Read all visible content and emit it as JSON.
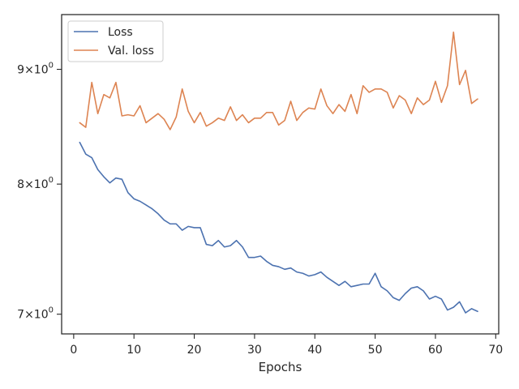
{
  "chart_data": {
    "type": "line",
    "title": "",
    "xlabel": "Epochs",
    "ylabel": "",
    "yscale": "log",
    "xlim": [
      -2,
      70.5
    ],
    "ylim": [
      6.86,
      9.52
    ],
    "x_ticks": [
      0,
      10,
      20,
      30,
      40,
      50,
      60,
      70
    ],
    "y_ticks": [
      {
        "value": 7,
        "base": "7",
        "exp": "0"
      },
      {
        "value": 8,
        "base": "8",
        "exp": "0"
      },
      {
        "value": 9,
        "base": "9",
        "exp": "0"
      }
    ],
    "grid": false,
    "legend": {
      "position": "top-left"
    },
    "x": [
      1,
      2,
      3,
      4,
      5,
      6,
      7,
      8,
      9,
      10,
      11,
      12,
      13,
      14,
      15,
      16,
      17,
      18,
      19,
      20,
      21,
      22,
      23,
      24,
      25,
      26,
      27,
      28,
      29,
      30,
      31,
      32,
      33,
      34,
      35,
      36,
      37,
      38,
      39,
      40,
      41,
      42,
      43,
      44,
      45,
      46,
      47,
      48,
      49,
      50,
      51,
      52,
      53,
      54,
      55,
      56,
      57,
      58,
      59,
      60,
      61,
      62,
      63,
      64,
      65,
      66,
      67
    ],
    "series": [
      {
        "name": "Loss",
        "color": "#4c72b0",
        "values": [
          8.35,
          8.25,
          8.22,
          8.12,
          8.06,
          8.01,
          8.05,
          8.04,
          7.93,
          7.88,
          7.86,
          7.83,
          7.8,
          7.76,
          7.71,
          7.68,
          7.68,
          7.63,
          7.66,
          7.65,
          7.65,
          7.52,
          7.51,
          7.55,
          7.5,
          7.51,
          7.55,
          7.5,
          7.42,
          7.42,
          7.43,
          7.39,
          7.36,
          7.35,
          7.33,
          7.34,
          7.31,
          7.3,
          7.28,
          7.29,
          7.31,
          7.27,
          7.24,
          7.21,
          7.24,
          7.2,
          7.21,
          7.22,
          7.22,
          7.3,
          7.2,
          7.17,
          7.12,
          7.1,
          7.15,
          7.19,
          7.2,
          7.17,
          7.11,
          7.13,
          7.11,
          7.03,
          7.05,
          7.09,
          7.01,
          7.04,
          7.02
        ]
      },
      {
        "name": "Val. loss",
        "color": "#dd8452",
        "values": [
          8.52,
          8.48,
          8.88,
          8.6,
          8.77,
          8.74,
          8.88,
          8.58,
          8.59,
          8.58,
          8.67,
          8.52,
          8.56,
          8.6,
          8.55,
          8.46,
          8.57,
          8.82,
          8.62,
          8.52,
          8.61,
          8.49,
          8.52,
          8.56,
          8.54,
          8.66,
          8.54,
          8.59,
          8.52,
          8.56,
          8.56,
          8.61,
          8.61,
          8.5,
          8.54,
          8.71,
          8.54,
          8.61,
          8.65,
          8.64,
          8.82,
          8.67,
          8.6,
          8.68,
          8.62,
          8.77,
          8.6,
          8.85,
          8.79,
          8.82,
          8.82,
          8.79,
          8.65,
          8.76,
          8.72,
          8.6,
          8.74,
          8.68,
          8.72,
          8.89,
          8.7,
          8.85,
          9.35,
          8.86,
          8.99,
          8.69,
          8.73
        ]
      }
    ]
  }
}
